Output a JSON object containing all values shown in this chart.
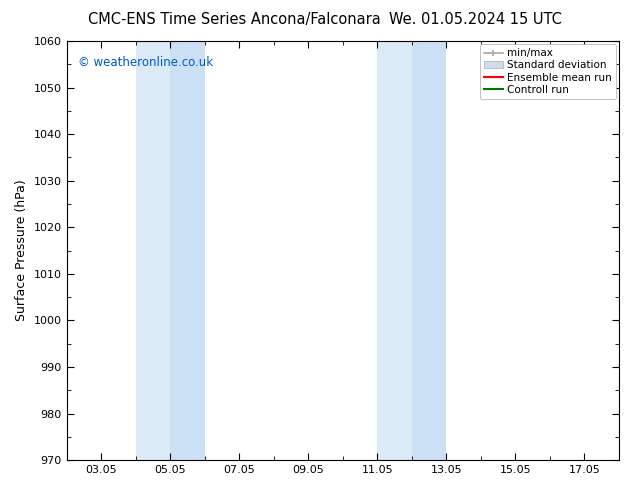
{
  "title_left": "CMC-ENS Time Series Ancona/Falconara",
  "title_right": "We. 01.05.2024 15 UTC",
  "ylabel": "Surface Pressure (hPa)",
  "ylim": [
    970,
    1060
  ],
  "yticks": [
    970,
    980,
    990,
    1000,
    1010,
    1020,
    1030,
    1040,
    1050,
    1060
  ],
  "xlim": [
    2.0,
    18.0
  ],
  "xtick_positions": [
    3,
    5,
    7,
    9,
    11,
    13,
    15,
    17
  ],
  "xtick_labels": [
    "03.05",
    "05.05",
    "07.05",
    "09.05",
    "11.05",
    "13.05",
    "15.05",
    "17.05"
  ],
  "shaded_regions": [
    {
      "x_start": 4.0,
      "x_end": 5.0,
      "color": "#daeaf7"
    },
    {
      "x_start": 5.0,
      "x_end": 6.0,
      "color": "#cce0f5"
    },
    {
      "x_start": 11.0,
      "x_end": 12.0,
      "color": "#daeaf7"
    },
    {
      "x_start": 12.0,
      "x_end": 13.0,
      "color": "#cce0f5"
    }
  ],
  "watermark": "© weatheronline.co.uk",
  "watermark_color": "#0055cc",
  "bg_color": "#ffffff",
  "plot_bg_color": "#ffffff",
  "title_fontsize": 10.5,
  "label_fontsize": 9,
  "tick_fontsize": 8,
  "legend_fontsize": 7.5,
  "legend_color_minmax": "#aaaaaa",
  "legend_color_std": "#ccdded",
  "legend_color_ensemble": "#ff0000",
  "legend_color_control": "#007700"
}
